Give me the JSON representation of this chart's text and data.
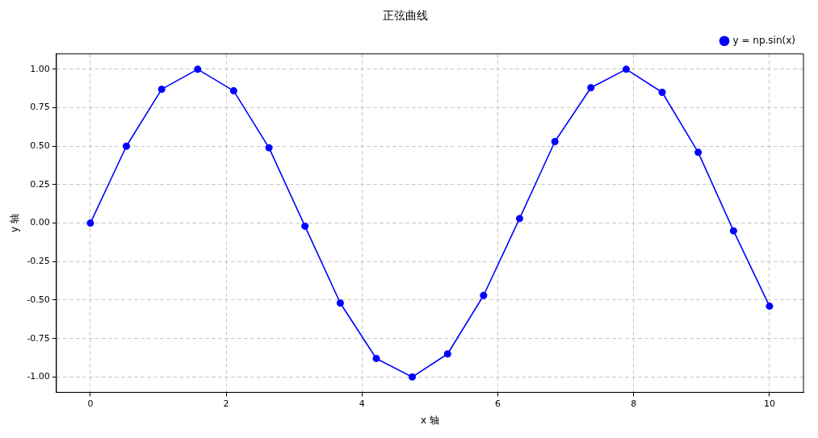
{
  "chart_data": {
    "type": "line",
    "title": "正弦曲线",
    "xlabel": "x 轴",
    "ylabel": "y 轴",
    "series": [
      {
        "name": "y = np.sin(x)",
        "color": "#0000ff",
        "x": [
          0,
          0.53,
          1.05,
          1.58,
          2.11,
          2.63,
          3.16,
          3.68,
          4.21,
          4.74,
          5.26,
          5.79,
          6.32,
          6.84,
          7.37,
          7.89,
          8.42,
          8.95,
          9.47,
          10
        ],
        "values": [
          0,
          0.5,
          0.87,
          1.0,
          0.86,
          0.49,
          -0.02,
          -0.52,
          -0.88,
          -1.0,
          -0.85,
          -0.47,
          0.03,
          0.53,
          0.88,
          1.0,
          0.85,
          0.46,
          -0.05,
          -0.54
        ]
      }
    ],
    "xlim": [
      -0.5,
      10.5
    ],
    "xticks": [
      0,
      2,
      4,
      6,
      8,
      10
    ],
    "ylim": [
      -1.1,
      1.1
    ],
    "yticks": [
      {
        "value": -1,
        "label": "-1.00"
      },
      {
        "value": -0.75,
        "label": "-0.75"
      },
      {
        "value": -0.5,
        "label": "-0.50"
      },
      {
        "value": -0.25,
        "label": "-0.25"
      },
      {
        "value": 0,
        "label": "0.00"
      },
      {
        "value": 0.25,
        "label": "0.25"
      },
      {
        "value": 0.5,
        "label": "0.50"
      },
      {
        "value": 0.75,
        "label": "0.75"
      },
      {
        "value": 1,
        "label": "1.00"
      }
    ],
    "grid": true,
    "legend": "top right",
    "marker": "circle",
    "line_style": "solid"
  }
}
